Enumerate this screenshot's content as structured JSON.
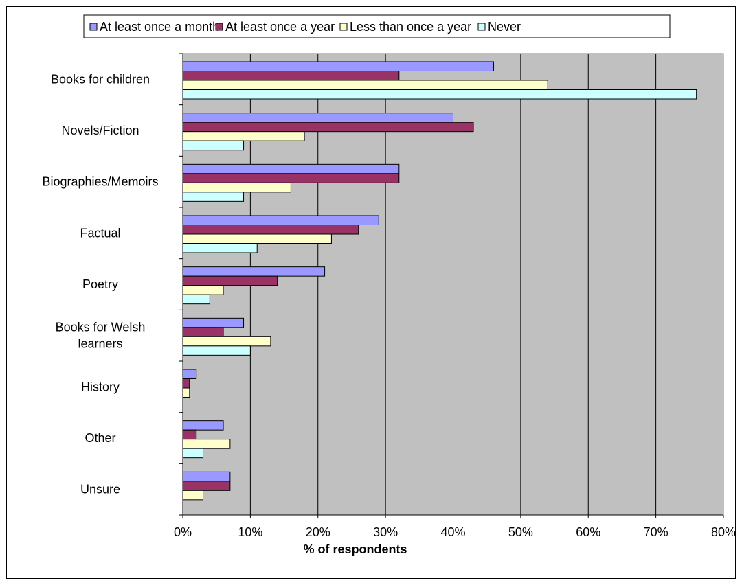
{
  "chart_data": {
    "type": "bar",
    "orientation": "horizontal",
    "categories": [
      "Books for children",
      "Novels/Fiction",
      "Biographies/Memoirs",
      "Factual",
      "Poetry",
      "Books for Welsh learners",
      "History",
      "Other",
      "Unsure"
    ],
    "category_label_lines": [
      [
        "Books for children"
      ],
      [
        "Novels/Fiction"
      ],
      [
        "Biographies/Memoirs"
      ],
      [
        "Factual"
      ],
      [
        "Poetry"
      ],
      [
        "Books for Welsh",
        "learners"
      ],
      [
        "History"
      ],
      [
        "Other"
      ],
      [
        "Unsure"
      ]
    ],
    "series": [
      {
        "name": "At least once a month",
        "color": "#9999ff",
        "values": [
          46,
          40,
          32,
          29,
          21,
          9,
          2,
          6,
          7
        ]
      },
      {
        "name": "At least once a year",
        "color": "#993366",
        "values": [
          32,
          43,
          32,
          26,
          14,
          6,
          1,
          2,
          7
        ]
      },
      {
        "name": "Less than once a year",
        "color": "#ffffcc",
        "values": [
          54,
          18,
          16,
          22,
          6,
          13,
          1,
          7,
          3
        ]
      },
      {
        "name": "Never",
        "color": "#ccffff",
        "values": [
          76,
          9,
          9,
          11,
          4,
          10,
          0,
          3,
          0
        ]
      }
    ],
    "xlabel": "% of respondents",
    "ylabel": "",
    "xlim": [
      0,
      80
    ],
    "xticks": [
      "0%",
      "10%",
      "20%",
      "30%",
      "40%",
      "50%",
      "60%",
      "70%",
      "80%"
    ],
    "grid": true,
    "plot_background": "#c0c0c0",
    "legend_position": "top"
  }
}
